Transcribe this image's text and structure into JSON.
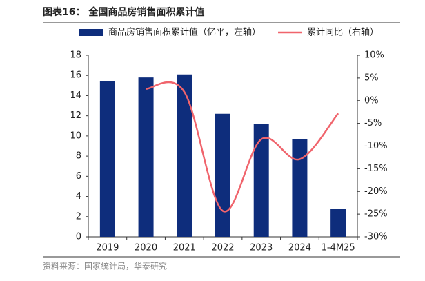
{
  "chart_data": {
    "type": "bar-line",
    "title": "图表16：  全国商品房销售面积累计值",
    "source": "资料来源：国家统计局，华泰研究",
    "categories": [
      "2019",
      "2020",
      "2021",
      "2022",
      "2023",
      "2024",
      "1-4M25"
    ],
    "series": [
      {
        "name": "商品房销售面积累计值（亿平，左轴）",
        "type": "bar",
        "color": "#0e2d7c",
        "values": [
          15.4,
          15.8,
          16.1,
          12.2,
          11.2,
          9.7,
          2.8
        ]
      },
      {
        "name": "累计同比（右轴）",
        "type": "line",
        "axis": "y2",
        "color": "#f0646c",
        "values": [
          null,
          2.6,
          1.9,
          -24.3,
          -8.5,
          -12.9,
          -2.8
        ]
      }
    ],
    "ylim": [
      0,
      18
    ],
    "yticks": [
      0,
      2,
      4,
      6,
      8,
      10,
      12,
      14,
      16,
      18
    ],
    "y2lim": [
      -30,
      10
    ],
    "y2ticks": [
      {
        "value": 10,
        "label": "10%"
      },
      {
        "value": 5,
        "label": "5%"
      },
      {
        "value": 0,
        "label": "0%"
      },
      {
        "value": -5,
        "label": "-5%"
      },
      {
        "value": -10,
        "label": "-10%"
      },
      {
        "value": -15,
        "label": "-15%"
      },
      {
        "value": -20,
        "label": "-20%"
      },
      {
        "value": -25,
        "label": "-25%"
      },
      {
        "value": -30,
        "label": "-30%"
      }
    ]
  }
}
